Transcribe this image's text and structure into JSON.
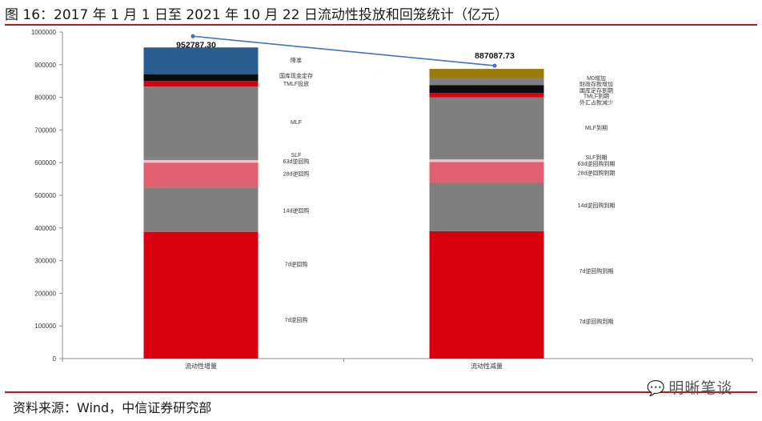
{
  "header": {
    "title": "图 16：2017 年 1 月 1 日至 2021 年 10 月 22 日流动性投放和回笼统计（亿元）"
  },
  "footer": {
    "source": "资料来源：Wind，中信证券研究部",
    "watermark": "明晰笔谈"
  },
  "chart_data": {
    "type": "bar",
    "stacked": true,
    "title": "图 16：2017 年 1 月 1 日至 2021 年 10 月 22 日流动性投放和回笼统计（亿元）",
    "categories": [
      "流动性增量",
      "流动性减量"
    ],
    "ylim": [
      0,
      1000000
    ],
    "yticks": [
      0,
      100000,
      200000,
      300000,
      400000,
      500000,
      600000,
      700000,
      800000,
      900000,
      1000000
    ],
    "grid": false,
    "colors": {
      "red": "#d7000f",
      "gray": "#7f7f7f",
      "pink": "#e06070",
      "lightpink": "#f4c0c8",
      "black": "#0d0d0d",
      "blue": "#2a5d8f",
      "olive": "#9b7b0a",
      "line": "#4472c4"
    },
    "stacks": [
      {
        "category": "流动性增量",
        "segments": [
          {
            "name": "7d逆回购",
            "value": 388000,
            "color": "red"
          },
          {
            "name": "14d逆回购",
            "value": 136000,
            "color": "gray"
          },
          {
            "name": "28d逆回购",
            "value": 76000,
            "color": "pink"
          },
          {
            "name": "63d逆回购",
            "value": 8000,
            "color": "lightpink"
          },
          {
            "name": "SLF",
            "value": 5000,
            "color": "gray"
          },
          {
            "name": "MLF",
            "value": 220000,
            "color": "gray"
          },
          {
            "name": "TMLF投放",
            "value": 17000,
            "color": "red"
          },
          {
            "name": "国库现金定存",
            "value": 21000,
            "color": "black"
          },
          {
            "name": "降准",
            "value": 81787.3,
            "color": "blue"
          }
        ],
        "labels": [
          "7d逆回购",
          "7d逆回购",
          "14d逆回购",
          "28d逆回购",
          "63d逆回购",
          "SLF",
          "MLF",
          "TMLF投放",
          "国库现金定存",
          "降准"
        ],
        "total": 952787.3
      },
      {
        "category": "流动性减量",
        "segments": [
          {
            "name": "7d逆回购到期",
            "value": 390000,
            "color": "red"
          },
          {
            "name": "14d逆回购到期",
            "value": 148000,
            "color": "gray"
          },
          {
            "name": "28d逆回购到期",
            "value": 64000,
            "color": "pink"
          },
          {
            "name": "63d逆回购到期",
            "value": 8000,
            "color": "lightpink"
          },
          {
            "name": "SLF到期",
            "value": 5000,
            "color": "gray"
          },
          {
            "name": "MLF到期",
            "value": 185000,
            "color": "gray"
          },
          {
            "name": "外汇占款减少",
            "value": 4000,
            "color": "red"
          },
          {
            "name": "TMLF到期",
            "value": 9000,
            "color": "red"
          },
          {
            "name": "国库定存到期",
            "value": 24000,
            "color": "black"
          },
          {
            "name": "財政存款增加",
            "value": 22000,
            "color": "gray"
          },
          {
            "name": "M0增加",
            "value": 28087.73,
            "color": "olive"
          }
        ],
        "labels": [
          "7d逆回购到期",
          "7d逆回购到期",
          "14d逆回购到期",
          "28d逆回购到期",
          "63d逆回购到期",
          "SLF到期",
          "MLF到期",
          "外汇占款减少",
          "TMLF到期",
          "国库定存到期",
          "財政存款增加",
          "M0增加"
        ],
        "total": 887087.73
      }
    ],
    "line": {
      "values": [
        952787.3,
        887087.73
      ],
      "labels": [
        "952787.30",
        "887087.73"
      ]
    }
  }
}
